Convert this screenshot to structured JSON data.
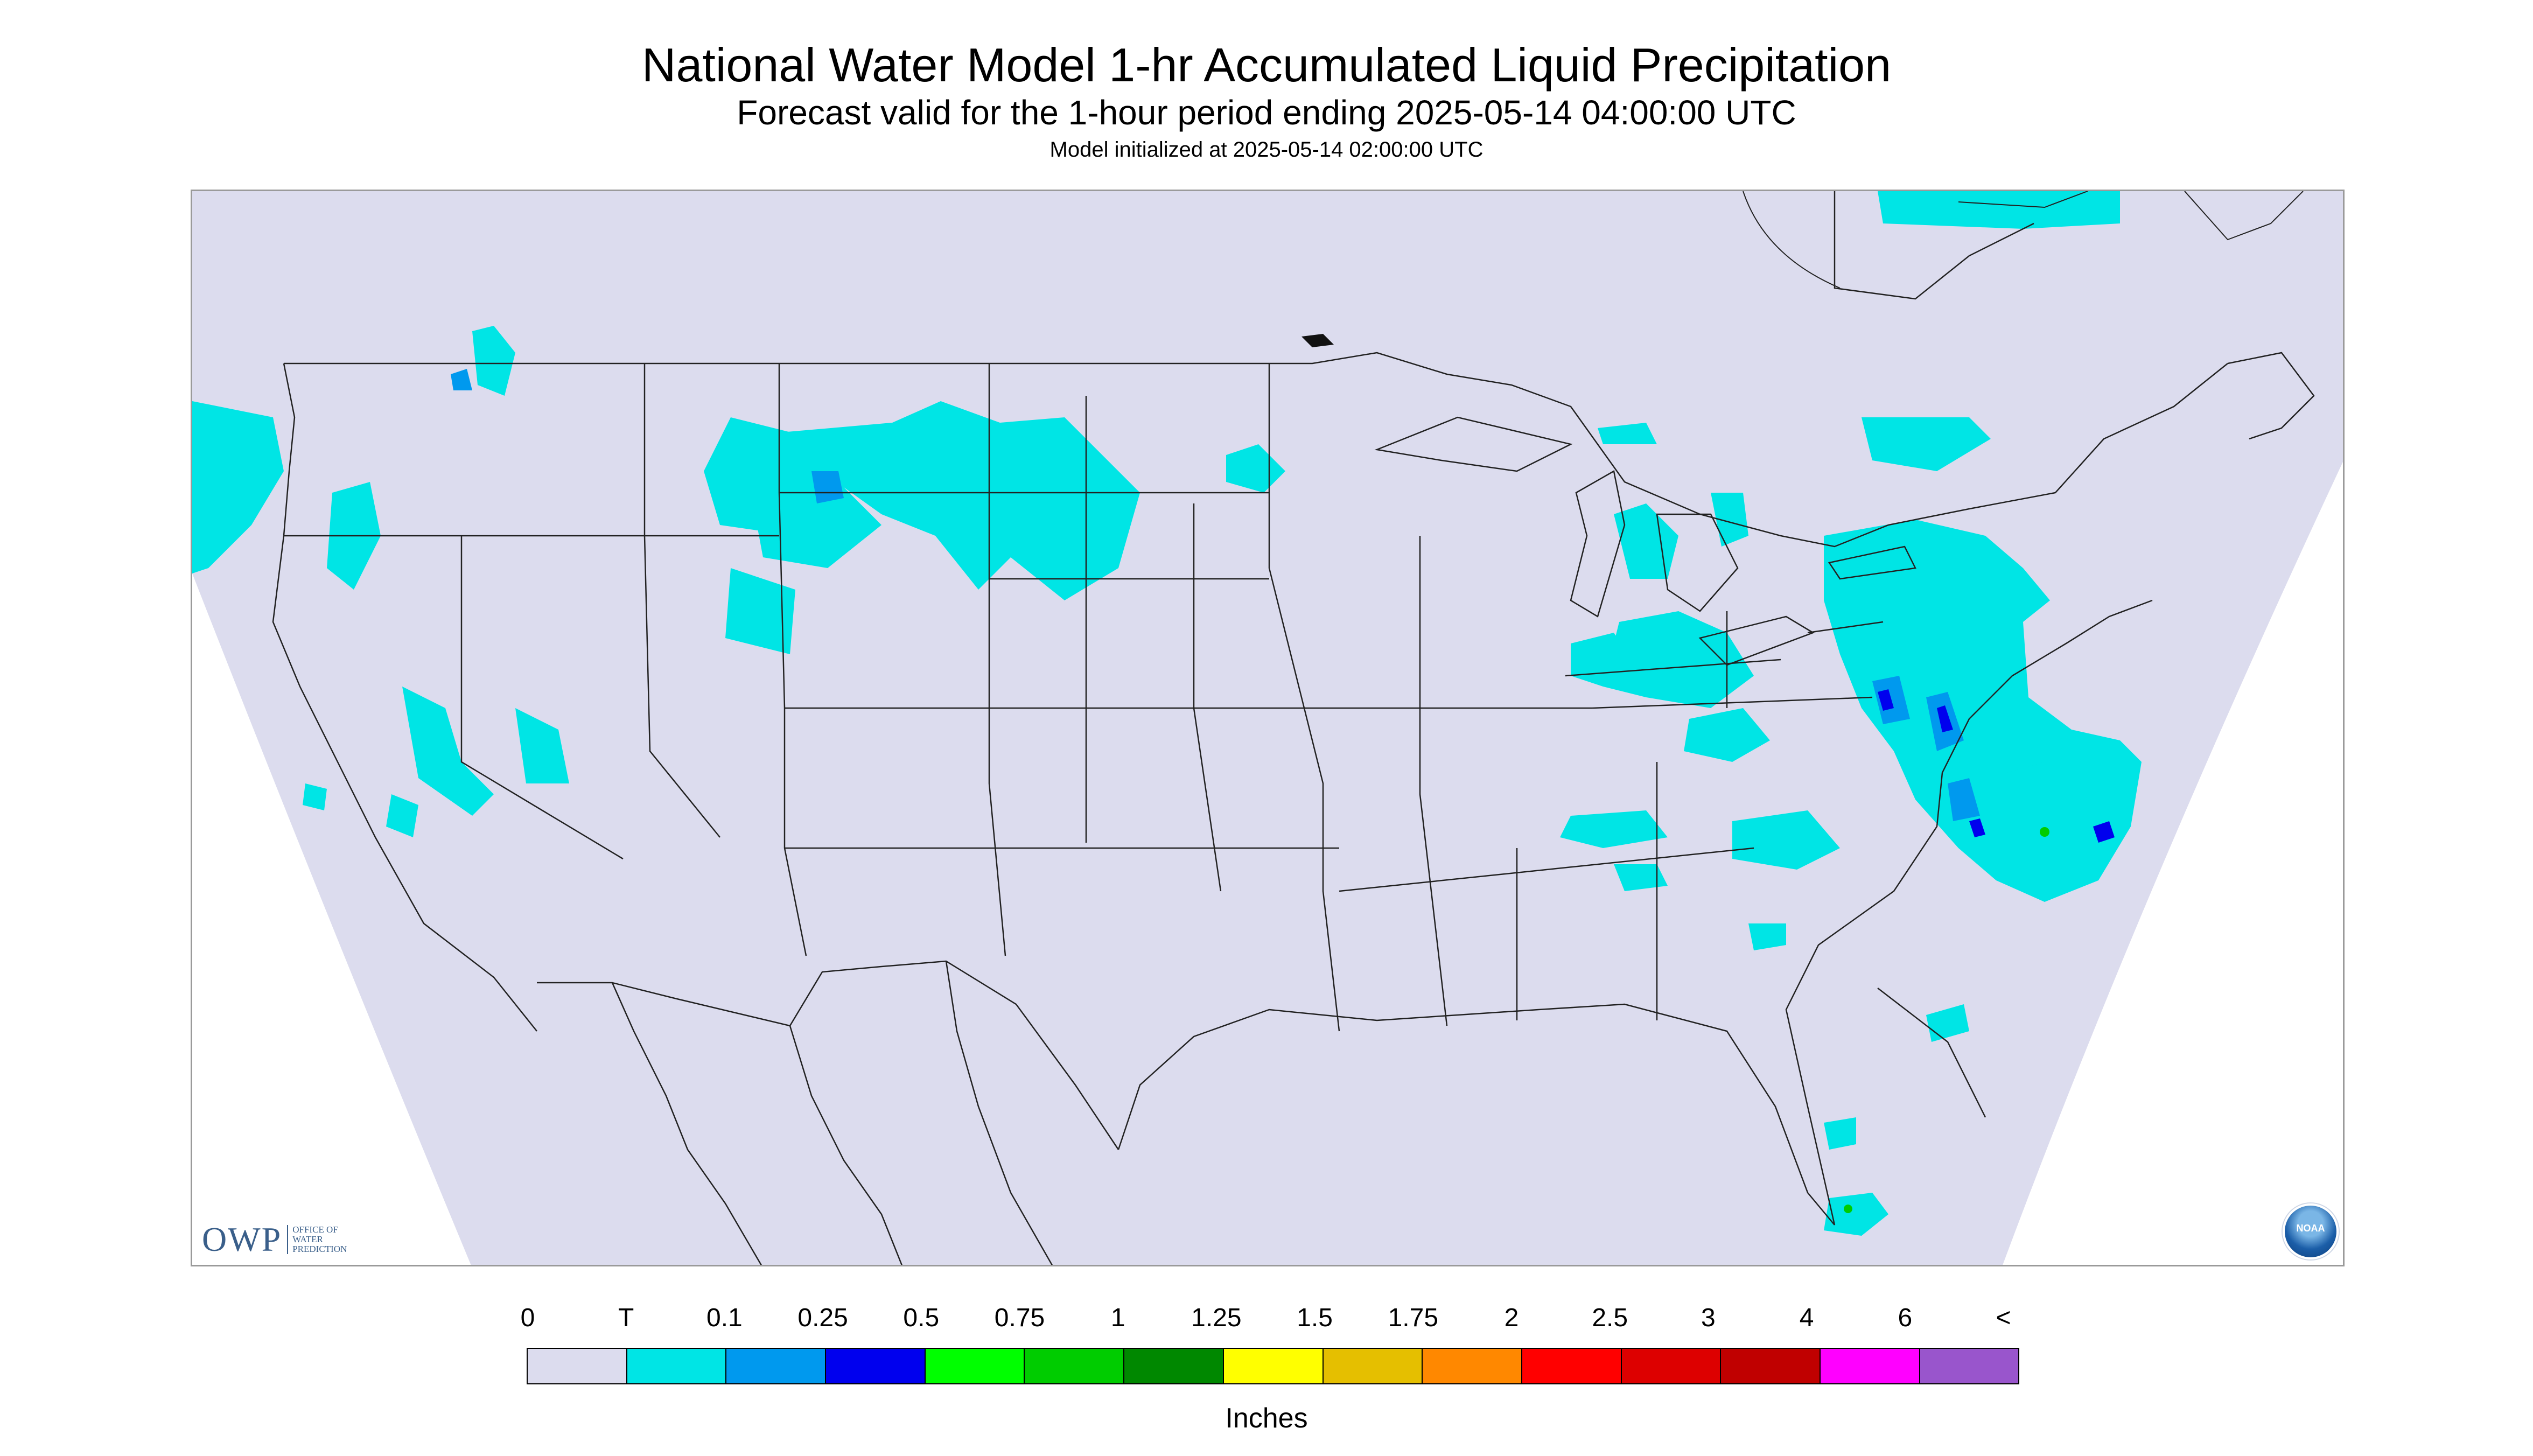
{
  "title": "National Water Model 1-hr Accumulated Liquid Precipitation",
  "subtitle": "Forecast valid for the 1-hour period ending 2025-05-14 04:00:00 UTC",
  "init_line": "Model initialized at 2025-05-14 02:00:00 UTC",
  "logo_owp": {
    "mark": "OWP",
    "sub": "OFFICE OF\nWATER\nPREDICTION"
  },
  "logo_noaa": "NOAA",
  "legend": {
    "units": "Inches",
    "tick_labels": [
      "0",
      "T",
      "0.1",
      "0.25",
      "0.5",
      "0.75",
      "1",
      "1.25",
      "1.5",
      "1.75",
      "2",
      "2.5",
      "3",
      "4",
      "6",
      "<"
    ],
    "colors": [
      "#dcdcee",
      "#00e5e5",
      "#0099ee",
      "#0000ee",
      "#00ff00",
      "#00cc00",
      "#008800",
      "#ffff00",
      "#e5bf00",
      "#ff8800",
      "#ff0000",
      "#dd0000",
      "#c00000",
      "#ff00ff",
      "#9955cc"
    ]
  },
  "colors": {
    "map_background": "#dcdcee",
    "precip_trace": "#00e5e5",
    "precip_light": "#0099ee",
    "precip_mod": "#0000ee",
    "boundary": "#222222"
  }
}
